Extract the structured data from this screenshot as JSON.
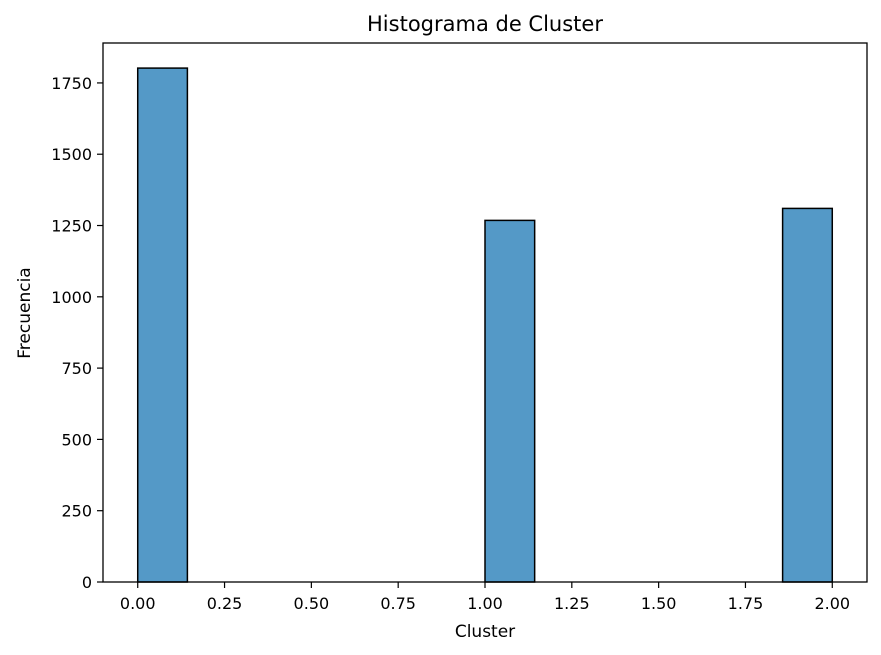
{
  "chart_data": {
    "type": "bar",
    "title": "Histograma de Cluster",
    "xlabel": "Cluster",
    "ylabel": "Frecuencia",
    "xlim": [
      -0.1,
      2.1
    ],
    "ylim": [
      0,
      1890
    ],
    "x_ticks": [
      "0.00",
      "0.25",
      "0.50",
      "0.75",
      "1.00",
      "1.25",
      "1.50",
      "1.75",
      "2.00"
    ],
    "y_ticks": [
      "0",
      "250",
      "500",
      "750",
      "1000",
      "1250",
      "1500",
      "1750"
    ],
    "bins": [
      {
        "x0": 0.0,
        "x1": 0.143,
        "value": 1802
      },
      {
        "x0": 1.0,
        "x1": 1.143,
        "value": 1268
      },
      {
        "x0": 1.857,
        "x1": 2.0,
        "value": 1310
      }
    ],
    "grid": false,
    "bar_color": "#5499c7",
    "edge_color": "#000000"
  }
}
